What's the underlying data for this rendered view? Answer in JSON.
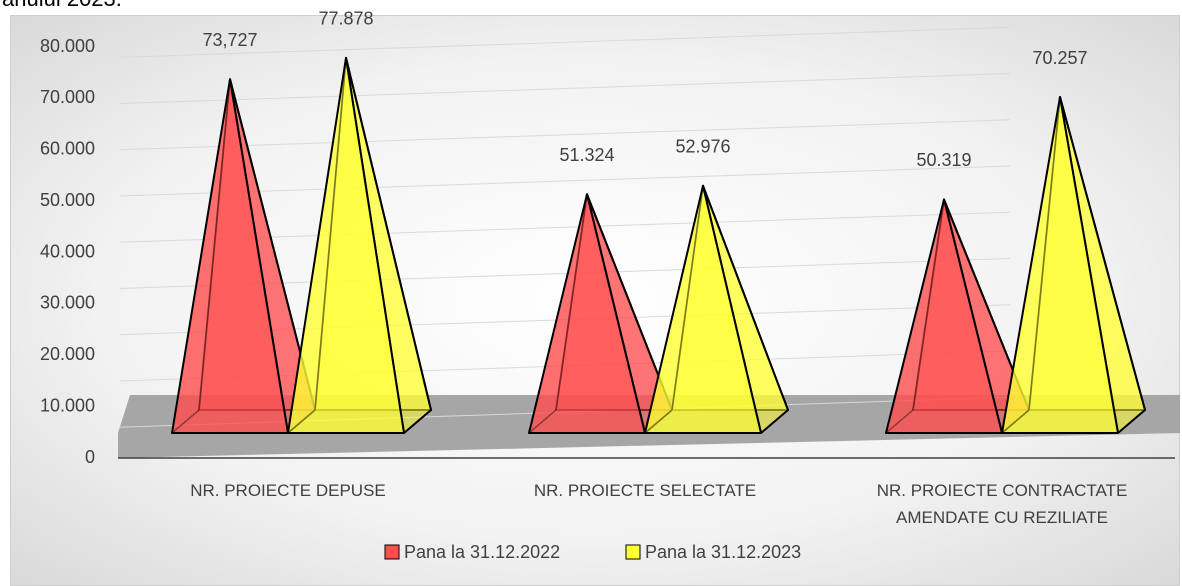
{
  "page_text": "anului 2023.",
  "chart_data": {
    "type": "pyramid",
    "categories": [
      "NR. PROIECTE DEPUSE",
      "NR. PROIECTE SELECTATE",
      "NR. PROIECTE CONTRACTATE AMENDATE CU REZILIATE"
    ],
    "series": [
      {
        "name": "Pana la 31.12.2022",
        "color": "#ff4d4d",
        "values": [
          73727,
          51324,
          50319
        ],
        "value_labels": [
          "73,727",
          "51.324",
          "50.319"
        ]
      },
      {
        "name": "Pana la 31.12.2023",
        "color": "#ffff33",
        "values": [
          77878,
          52976,
          70257
        ],
        "value_labels": [
          "77.878",
          "52.976",
          "70.257"
        ]
      }
    ],
    "ylim": [
      0,
      80000
    ],
    "yticks": [
      0,
      {
        "value": 10000,
        "label": "10.000"
      },
      {
        "value": 20000,
        "label": "20.000"
      },
      {
        "value": 30000,
        "label": "30.000"
      },
      {
        "value": 40000,
        "label": "40.000"
      },
      {
        "value": 50000,
        "label": "50.000"
      },
      {
        "value": 60000,
        "label": "60.000"
      },
      {
        "value": 70000,
        "label": "70.000"
      },
      {
        "value": 80000,
        "label": "80.000"
      }
    ],
    "grid": true,
    "legend": "bottom"
  }
}
